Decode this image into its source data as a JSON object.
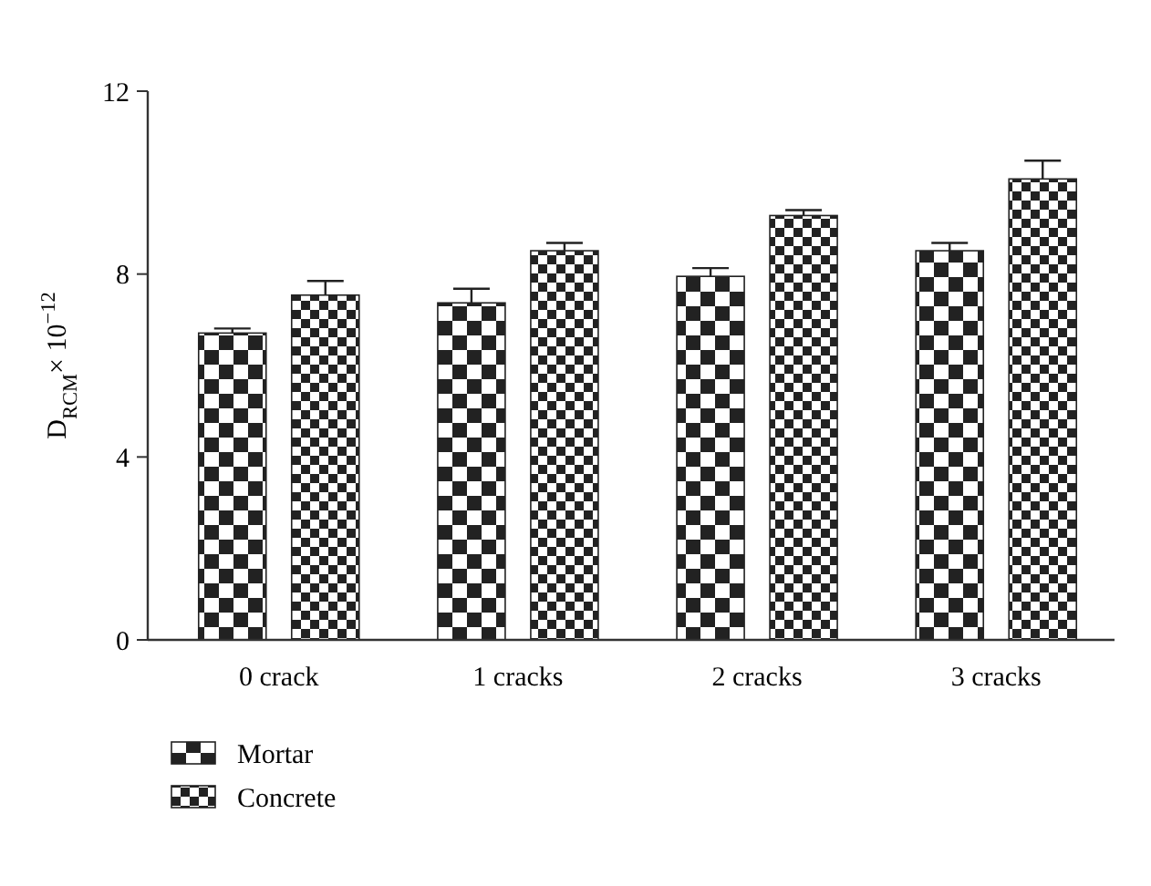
{
  "chart_data": {
    "type": "bar",
    "ylabel": "D$_{RCM}$× 10$^{−12}$",
    "categories": [
      "0 crack",
      "1 cracks",
      "2 cracks",
      "3 cracks"
    ],
    "series": [
      {
        "name": "Mortar",
        "color": "#222222",
        "values": [
          6.71,
          7.37,
          7.95,
          8.51
        ],
        "errors": [
          0.1,
          0.31,
          0.18,
          0.17
        ]
      },
      {
        "name": "Concrete",
        "color": "#222222",
        "values": [
          7.54,
          8.51,
          9.28,
          10.08
        ],
        "errors": [
          0.31,
          0.17,
          0.12,
          0.4
        ]
      }
    ],
    "ylim": [
      0,
      12
    ],
    "yticks": [
      0,
      4,
      8,
      12
    ],
    "grid": false,
    "legend": "bottom left"
  }
}
